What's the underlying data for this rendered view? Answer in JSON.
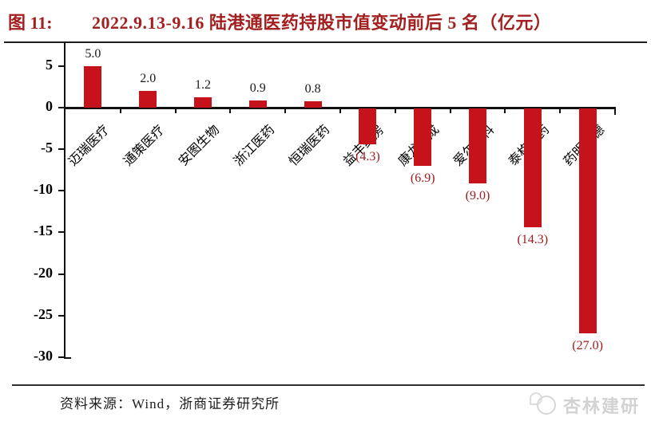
{
  "header": {
    "figure_label": "图 11:",
    "title": "2022.9.13-9.16 陆港通医药持股市值变动前后 5 名（亿元）",
    "title_color": "#a2201f"
  },
  "chart_data": {
    "type": "bar",
    "title": "2022.9.13-9.16 陆港通医药持股市值变动前后 5 名（亿元）",
    "categories": [
      "迈瑞医疗",
      "通策医疗",
      "安图生物",
      "浙江医药",
      "恒瑞医药",
      "益丰药房",
      "康龙化成",
      "爱尔眼科",
      "泰格医药",
      "药明康德"
    ],
    "values": [
      5.0,
      2.0,
      1.2,
      0.9,
      0.8,
      -4.3,
      -6.9,
      -9.0,
      -14.3,
      -27.0
    ],
    "value_labels": [
      "5.0",
      "2.0",
      "1.2",
      "0.9",
      "0.8",
      "(4.3)",
      "(6.9)",
      "(9.0)",
      "(14.3)",
      "(27.0)"
    ],
    "y_ticks": [
      5,
      0,
      -5,
      -10,
      -15,
      -20,
      -25,
      -30
    ],
    "ylim": [
      -30,
      8
    ],
    "xlabel": "",
    "ylabel": "",
    "grid": false,
    "legend": null,
    "bar_color": "#c5121b",
    "negative_label_color": "#9e1b20",
    "axis_color": "#111111"
  },
  "footer": {
    "source": "资料来源：Wind，浙商证券研究所",
    "brand": "杏林建研"
  }
}
